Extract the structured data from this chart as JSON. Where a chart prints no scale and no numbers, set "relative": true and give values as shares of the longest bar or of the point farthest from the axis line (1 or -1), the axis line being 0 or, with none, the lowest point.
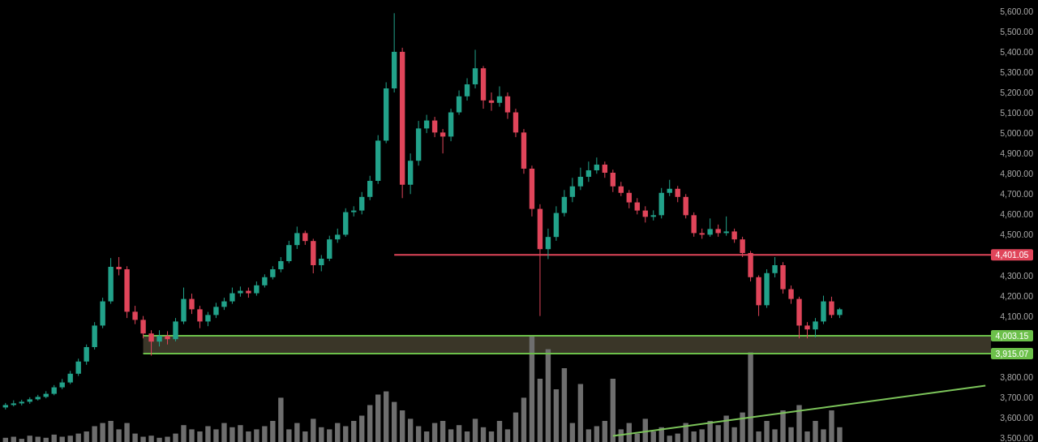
{
  "chart_data": [
    {
      "type": "candlestick",
      "categories": [
        null,
        null,
        null,
        null,
        null,
        null,
        null,
        null,
        null,
        null,
        null,
        null,
        null,
        null,
        null,
        null,
        null,
        null,
        null,
        null,
        null,
        null,
        null,
        null,
        null,
        null,
        null,
        null,
        null,
        null,
        null,
        null,
        null,
        null,
        null,
        null,
        null,
        null,
        null,
        null,
        null,
        null,
        null,
        null,
        null,
        null,
        null,
        null,
        null,
        null,
        null,
        null,
        null,
        null,
        null,
        null,
        null,
        null,
        null,
        null,
        null,
        null,
        null,
        null,
        null,
        null,
        null,
        null,
        null,
        null,
        null,
        null,
        null,
        null,
        null,
        null,
        null,
        null,
        null,
        null,
        null,
        null,
        null,
        null,
        null,
        null,
        null,
        null,
        null,
        null,
        null,
        null,
        null,
        null,
        null,
        null,
        null,
        null,
        null,
        null,
        null,
        null,
        null,
        null,
        null,
        null,
        null,
        null,
        null,
        null,
        null,
        null,
        null,
        null,
        null,
        null,
        null,
        null,
        null,
        null,
        null,
        null
      ],
      "ohlc": [
        [
          3650,
          3672,
          3640,
          3662
        ],
        [
          3662,
          3685,
          3655,
          3670
        ],
        [
          3670,
          3688,
          3660,
          3678
        ],
        [
          3678,
          3700,
          3668,
          3690
        ],
        [
          3690,
          3712,
          3684,
          3702
        ],
        [
          3702,
          3730,
          3695,
          3717
        ],
        [
          3717,
          3760,
          3710,
          3749
        ],
        [
          3749,
          3790,
          3740,
          3773
        ],
        [
          3773,
          3830,
          3765,
          3816
        ],
        [
          3816,
          3890,
          3805,
          3876
        ],
        [
          3876,
          3960,
          3860,
          3947
        ],
        [
          3947,
          4070,
          3935,
          4053
        ],
        [
          4053,
          4190,
          4040,
          4172
        ],
        [
          4172,
          4385,
          4160,
          4342
        ],
        [
          4342,
          4390,
          4300,
          4330
        ],
        [
          4330,
          4345,
          4090,
          4121
        ],
        [
          4121,
          4150,
          4060,
          4081
        ],
        [
          4081,
          4100,
          3990,
          4014
        ],
        [
          4014,
          4030,
          3905,
          3974
        ],
        [
          3974,
          4030,
          3950,
          4002
        ],
        [
          4002,
          4025,
          3960,
          3986
        ],
        [
          3986,
          4090,
          3975,
          4073
        ],
        [
          4073,
          4240,
          4060,
          4184
        ],
        [
          4184,
          4210,
          4110,
          4133
        ],
        [
          4133,
          4150,
          4040,
          4073
        ],
        [
          4073,
          4120,
          4050,
          4105
        ],
        [
          4105,
          4165,
          4090,
          4145
        ],
        [
          4145,
          4190,
          4130,
          4172
        ],
        [
          4172,
          4240,
          4160,
          4212
        ],
        [
          4212,
          4245,
          4195,
          4224
        ],
        [
          4224,
          4240,
          4190,
          4212
        ],
        [
          4212,
          4270,
          4200,
          4251
        ],
        [
          4251,
          4305,
          4240,
          4291
        ],
        [
          4291,
          4345,
          4280,
          4330
        ],
        [
          4330,
          4390,
          4315,
          4370
        ],
        [
          4370,
          4470,
          4360,
          4449
        ],
        [
          4449,
          4540,
          4430,
          4508
        ],
        [
          4508,
          4520,
          4450,
          4469
        ],
        [
          4469,
          4480,
          4310,
          4350
        ],
        [
          4350,
          4400,
          4320,
          4382
        ],
        [
          4382,
          4495,
          4370,
          4477
        ],
        [
          4477,
          4530,
          4460,
          4500
        ],
        [
          4500,
          4630,
          4490,
          4611
        ],
        [
          4611,
          4640,
          4590,
          4619
        ],
        [
          4619,
          4710,
          4600,
          4686
        ],
        [
          4686,
          4790,
          4670,
          4765
        ],
        [
          4765,
          4990,
          4750,
          4963
        ],
        [
          4963,
          5250,
          4950,
          5220
        ],
        [
          5220,
          5590,
          5200,
          5400
        ],
        [
          5400,
          5420,
          4680,
          4746
        ],
        [
          4746,
          4900,
          4700,
          4864
        ],
        [
          4864,
          5060,
          4840,
          5023
        ],
        [
          5023,
          5090,
          5000,
          5062
        ],
        [
          5062,
          5080,
          4980,
          5003
        ],
        [
          5003,
          5020,
          4900,
          4983
        ],
        [
          4983,
          5120,
          4960,
          5102
        ],
        [
          5102,
          5210,
          5090,
          5181
        ],
        [
          5181,
          5270,
          5160,
          5240
        ],
        [
          5240,
          5410,
          5220,
          5319
        ],
        [
          5319,
          5330,
          5120,
          5161
        ],
        [
          5161,
          5200,
          5110,
          5149
        ],
        [
          5149,
          5230,
          5130,
          5181
        ],
        [
          5181,
          5200,
          5070,
          5102
        ],
        [
          5102,
          5120,
          4980,
          5003
        ],
        [
          5003,
          5020,
          4800,
          4825
        ],
        [
          4825,
          4840,
          4590,
          4627
        ],
        [
          4627,
          4650,
          4100,
          4429
        ],
        [
          4429,
          4530,
          4380,
          4489
        ],
        [
          4489,
          4640,
          4470,
          4607
        ],
        [
          4607,
          4720,
          4590,
          4686
        ],
        [
          4686,
          4780,
          4660,
          4738
        ],
        [
          4738,
          4830,
          4720,
          4785
        ],
        [
          4785,
          4860,
          4760,
          4817
        ],
        [
          4817,
          4880,
          4800,
          4845
        ],
        [
          4845,
          4860,
          4780,
          4805
        ],
        [
          4805,
          4820,
          4710,
          4738
        ],
        [
          4738,
          4760,
          4690,
          4706
        ],
        [
          4706,
          4720,
          4630,
          4659
        ],
        [
          4659,
          4680,
          4600,
          4619
        ],
        [
          4619,
          4640,
          4560,
          4588
        ],
        [
          4588,
          4620,
          4570,
          4596
        ],
        [
          4596,
          4730,
          4580,
          4706
        ],
        [
          4706,
          4770,
          4690,
          4726
        ],
        [
          4726,
          4740,
          4660,
          4686
        ],
        [
          4686,
          4700,
          4580,
          4596
        ],
        [
          4596,
          4610,
          4490,
          4508
        ],
        [
          4508,
          4530,
          4480,
          4500
        ],
        [
          4500,
          4580,
          4490,
          4528
        ],
        [
          4528,
          4550,
          4490,
          4508
        ],
        [
          4508,
          4590,
          4495,
          4516
        ],
        [
          4516,
          4530,
          4460,
          4477
        ],
        [
          4477,
          4490,
          4390,
          4410
        ],
        [
          4410,
          4420,
          4270,
          4291
        ],
        [
          4291,
          4300,
          4100,
          4153
        ],
        [
          4153,
          4330,
          4140,
          4311
        ],
        [
          4311,
          4390,
          4290,
          4350
        ],
        [
          4350,
          4365,
          4210,
          4232
        ],
        [
          4232,
          4250,
          4160,
          4184
        ],
        [
          4184,
          4195,
          3990,
          4053
        ],
        [
          4053,
          4070,
          3990,
          4034
        ],
        [
          4034,
          4090,
          3995,
          4073
        ],
        [
          4073,
          4200,
          4060,
          4172
        ],
        [
          4172,
          4195,
          4090,
          4105
        ],
        [
          4105,
          4140,
          4090,
          4133
        ],
        null,
        null,
        null,
        null,
        null,
        null,
        null,
        null,
        null,
        null,
        null,
        null,
        null,
        null,
        null,
        null,
        null,
        null
      ],
      "series": [
        {
          "type": "line",
          "values": [
            null,
            null,
            null,
            null,
            null,
            null,
            null,
            null,
            null,
            null,
            null,
            null,
            null,
            null,
            null,
            null,
            null,
            null,
            null,
            null,
            null,
            null,
            null,
            null,
            null,
            null,
            null,
            null,
            null,
            null,
            null,
            null,
            null,
            null,
            null,
            null,
            null,
            null,
            null,
            null,
            null,
            null,
            null,
            null,
            null,
            null,
            null,
            null,
            null,
            null,
            null,
            null,
            null,
            null,
            null,
            null,
            null,
            null,
            null,
            null,
            null,
            null,
            null,
            null,
            null,
            null,
            null,
            null,
            null,
            null,
            null,
            null,
            null,
            null,
            null,
            3510,
            null,
            null,
            null,
            null,
            null,
            null,
            null,
            null,
            null,
            null,
            null,
            null,
            null,
            null,
            null,
            null,
            null,
            null,
            null,
            null,
            null,
            null,
            null,
            null,
            null,
            null,
            null,
            null,
            null,
            null,
            null,
            null,
            null,
            null,
            null,
            null,
            null,
            null,
            null,
            null,
            null,
            null,
            null,
            null,
            null,
            3757
          ],
          "color": "#7cc45a"
        }
      ],
      "ylim": [
        3480,
        5655
      ],
      "yticks": [
        {
          "value": 3500,
          "label": "3,500.00"
        },
        {
          "value": 3600,
          "label": "3,600.00"
        },
        {
          "value": 3700,
          "label": "3,700.00"
        },
        {
          "value": 3800,
          "label": "3,800.00"
        },
        {
          "value": 4100,
          "label": "4,100.00"
        },
        {
          "value": 4200,
          "label": "4,200.00"
        },
        {
          "value": 4300,
          "label": "4,300.00"
        },
        {
          "value": 4500,
          "label": "4,500.00"
        },
        {
          "value": 4600,
          "label": "4,600.00"
        },
        {
          "value": 4700,
          "label": "4,700.00"
        },
        {
          "value": 4800,
          "label": "4,800.00"
        },
        {
          "value": 4900,
          "label": "4,900.00"
        },
        {
          "value": 5000,
          "label": "5,000.00"
        },
        {
          "value": 5100,
          "label": "5,100.00"
        },
        {
          "value": 5200,
          "label": "5,200.00"
        },
        {
          "value": 5300,
          "label": "5,300.00"
        },
        {
          "value": 5400,
          "label": "5,400.00"
        },
        {
          "value": 5500,
          "label": "5,500.00"
        },
        {
          "value": 5600,
          "label": "5,600.00"
        }
      ],
      "ref_lines": [
        {
          "axis": "y",
          "value": 4401.05,
          "label": "4,401.05",
          "color": "#e0455a"
        },
        {
          "axis": "y",
          "value": 4003.15,
          "label": "4,003.15",
          "color": "#6cc04a"
        },
        {
          "axis": "y",
          "value": 3915.07,
          "label": "3,915.07",
          "color": "#6cc04a"
        }
      ],
      "bands": [
        {
          "axis": "y",
          "from": 3915.07,
          "to": 4003.15,
          "color": "#3a3628"
        }
      ],
      "tick_labels": "y"
    },
    {
      "type": "bar",
      "relative": true,
      "color": "#6e6e6e",
      "categories": [
        null,
        null,
        null,
        null,
        null,
        null,
        null,
        null,
        null,
        null,
        null,
        null,
        null,
        null,
        null,
        null,
        null,
        null,
        null,
        null,
        null,
        null,
        null,
        null,
        null,
        null,
        null,
        null,
        null,
        null,
        null,
        null,
        null,
        null,
        null,
        null,
        null,
        null,
        null,
        null,
        null,
        null,
        null,
        null,
        null,
        null,
        null,
        null,
        null,
        null,
        null,
        null,
        null,
        null,
        null,
        null,
        null,
        null,
        null,
        null,
        null,
        null,
        null,
        null,
        null,
        null,
        null,
        null,
        null,
        null,
        null,
        null,
        null,
        null,
        null,
        null,
        null,
        null,
        null,
        null,
        null,
        null,
        null,
        null,
        null,
        null,
        null,
        null,
        null,
        null,
        null,
        null,
        null,
        null,
        null,
        null,
        null,
        null,
        null,
        null,
        null,
        null,
        null,
        null
      ],
      "values": [
        0.04,
        0.05,
        0.03,
        0.06,
        0.05,
        0.04,
        0.07,
        0.05,
        0.06,
        0.08,
        0.1,
        0.15,
        0.18,
        0.2,
        0.12,
        0.18,
        0.08,
        0.05,
        0.06,
        0.04,
        0.05,
        0.08,
        0.16,
        0.12,
        0.1,
        0.15,
        0.12,
        0.18,
        0.14,
        0.16,
        0.1,
        0.12,
        0.15,
        0.2,
        0.42,
        0.12,
        0.18,
        0.1,
        0.22,
        0.14,
        0.12,
        0.18,
        0.15,
        0.2,
        0.25,
        0.35,
        0.45,
        0.48,
        0.38,
        0.3,
        0.22,
        0.15,
        0.1,
        0.18,
        0.2,
        0.12,
        0.16,
        0.1,
        0.22,
        0.14,
        0.1,
        0.2,
        0.12,
        0.28,
        0.42,
        1,
        0.6,
        0.88,
        0.5,
        0.7,
        0.18,
        0.55,
        0.12,
        0.15,
        0.2,
        0.6,
        0.12,
        0.18,
        0.08,
        0.22,
        0.1,
        0.14,
        0.06,
        0.08,
        0.18,
        0.1,
        0.12,
        0.2,
        0.16,
        0.25,
        0.14,
        0.28,
        0.85,
        0.1,
        0.2,
        0.12,
        0.3,
        0.14,
        0.35,
        0.1,
        0.2,
        0.12,
        0.3,
        0.14
      ]
    }
  ]
}
